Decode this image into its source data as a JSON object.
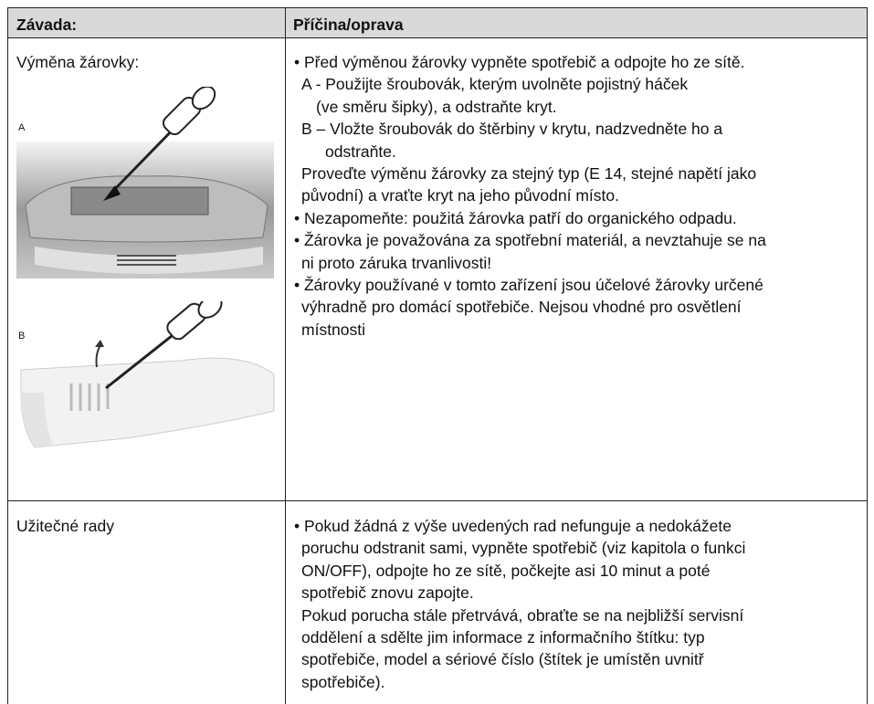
{
  "header": {
    "fault": "Závada:",
    "cause": "Příčina/oprava"
  },
  "rows": [
    {
      "fault": "Výměna žárovky:",
      "image_labels": [
        "A",
        "B"
      ],
      "lines": [
        "• Před výměnou žárovky vypněte spotřebič a odpojte ho ze sítě.",
        "A - Použijte šroubovák, kterým uvolněte pojistný háček",
        "(ve směru šipky), a odstraňte kryt.",
        "B – Vložte šroubovák do štěrbiny v krytu, nadzvedněte ho a",
        "odstraňte.",
        "Proveďte výměnu žárovky za stejný typ (E 14, stejné napětí jako",
        "původní) a vraťte kryt na jeho původní místo.",
        "• Nezapomeňte: použitá žárovka patří do organického odpadu.",
        "• Žárovka je považována za spotřební materiál, a nevztahuje se na",
        "ni proto záruka trvanlivosti!",
        "• Žárovky používané v tomto zařízení jsou účelové žárovky určené",
        "výhradně pro domácí spotřebiče. Nejsou vhodné pro osvětlení",
        "místnosti"
      ]
    },
    {
      "fault": "Užitečné rady",
      "lines": [
        "• Pokud žádná z výše uvedených rad nefunguje a nedokážete",
        "poruchu odstranit sami, vypněte spotřebič (viz kapitola o funkci",
        "ON/OFF), odpojte ho ze sítě, počkejte asi 10 minut a poté",
        "spotřebič znovu zapojte.",
        "Pokud porucha stále přetrvává, obraťte se na nejbližší servisní",
        "oddělení a sdělte jim informace z informačního štítku: typ",
        "spotřebiče, model a sériové číslo (štítek je umístěn uvnitř",
        "spotřebiče)."
      ]
    }
  ]
}
